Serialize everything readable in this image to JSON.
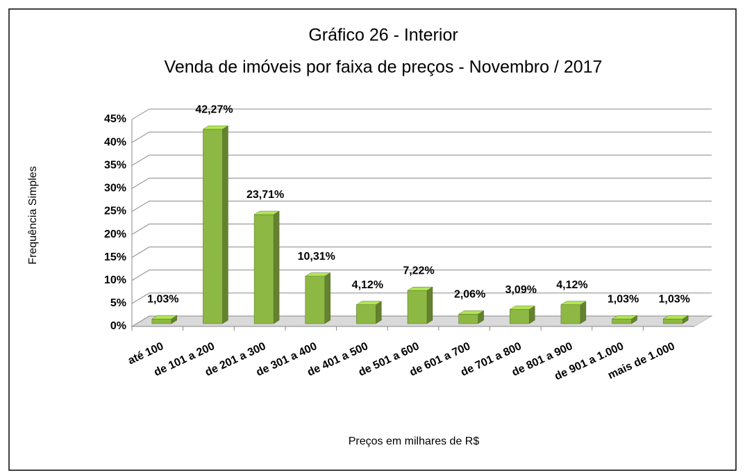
{
  "chart_data": {
    "type": "bar3d",
    "title": "Gráfico 26 - Interior",
    "subtitle": "Venda de imóveis por faixa de preços - Novembro / 2017",
    "x_label": "Preços em milhares de R$",
    "y_label": "Frequência Simples",
    "categories": [
      "até 100",
      "de 101 a 200",
      "de 201 a 300",
      "de 301 a 400",
      "de 401 a 500",
      "de 501 a 600",
      "de 601 a 700",
      "de 701 a 800",
      "de 801 a 900",
      "de 901 a 1.000",
      "mais de 1.000"
    ],
    "values": [
      1.03,
      42.27,
      23.71,
      10.31,
      4.12,
      7.22,
      2.06,
      3.09,
      4.12,
      1.03,
      1.03
    ],
    "value_labels": [
      "1,03%",
      "42,27%",
      "23,71%",
      "10,31%",
      "4,12%",
      "7,22%",
      "2,06%",
      "3,09%",
      "4,12%",
      "1,03%",
      "1,03%"
    ],
    "color": "#8db843",
    "ylim": [
      0,
      45
    ],
    "yticks": [
      {
        "value": 0,
        "label": "0%"
      },
      {
        "value": 5,
        "label": "5%"
      },
      {
        "value": 10,
        "label": "10%"
      },
      {
        "value": 15,
        "label": "15%"
      },
      {
        "value": 20,
        "label": "20%"
      },
      {
        "value": 25,
        "label": "25%"
      },
      {
        "value": 30,
        "label": "30%"
      },
      {
        "value": 35,
        "label": "35%"
      },
      {
        "value": 40,
        "label": "40%"
      },
      {
        "value": 45,
        "label": "45%"
      }
    ],
    "grid": true
  }
}
